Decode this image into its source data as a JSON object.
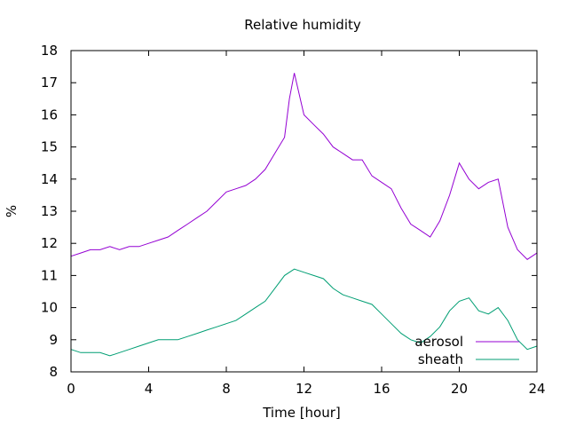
{
  "chart_data": {
    "type": "line",
    "title": "Relative humidity",
    "xlabel": "Time [hour]",
    "ylabel": "%",
    "xlim": [
      0,
      24
    ],
    "ylim": [
      8,
      18
    ],
    "xticks": [
      0,
      4,
      8,
      12,
      16,
      20,
      24
    ],
    "yticks": [
      8,
      9,
      10,
      11,
      12,
      13,
      14,
      15,
      16,
      17,
      18
    ],
    "grid": false,
    "legend_position": "bottom-right",
    "series": [
      {
        "name": "aerosol",
        "color": "#9400d3",
        "x": [
          0,
          0.5,
          1,
          1.5,
          2,
          2.5,
          3,
          3.5,
          4,
          4.5,
          5,
          5.5,
          6,
          6.5,
          7,
          7.5,
          8,
          8.5,
          9,
          9.5,
          10,
          10.5,
          11,
          11.25,
          11.5,
          12,
          12.5,
          13,
          13.5,
          14,
          14.5,
          15,
          15.5,
          16,
          16.5,
          17,
          17.5,
          18,
          18.5,
          19,
          19.5,
          20,
          20.5,
          21,
          21.5,
          22,
          22.5,
          23,
          23.5,
          24
        ],
        "y": [
          11.6,
          11.7,
          11.8,
          11.8,
          11.9,
          11.8,
          11.9,
          11.9,
          12.0,
          12.1,
          12.2,
          12.4,
          12.6,
          12.8,
          13.0,
          13.3,
          13.6,
          13.7,
          13.8,
          14.0,
          14.3,
          14.8,
          15.3,
          16.5,
          17.3,
          16.0,
          15.7,
          15.4,
          15.0,
          14.8,
          14.6,
          14.6,
          14.1,
          13.9,
          13.7,
          13.1,
          12.6,
          12.4,
          12.2,
          12.7,
          13.5,
          14.5,
          14.0,
          13.7,
          13.9,
          14.0,
          12.5,
          11.8,
          11.5,
          11.7
        ]
      },
      {
        "name": "sheath",
        "color": "#009e73",
        "x": [
          0,
          0.5,
          1,
          1.5,
          2,
          2.5,
          3,
          3.5,
          4,
          4.5,
          5,
          5.5,
          6,
          6.5,
          7,
          7.5,
          8,
          8.5,
          9,
          9.5,
          10,
          10.5,
          11,
          11.5,
          12,
          12.5,
          13,
          13.5,
          14,
          14.5,
          15,
          15.5,
          16,
          16.5,
          17,
          17.5,
          18,
          18.5,
          19,
          19.5,
          20,
          20.5,
          21,
          21.5,
          22,
          22.5,
          23,
          23.5,
          24
        ],
        "y": [
          8.7,
          8.6,
          8.6,
          8.6,
          8.5,
          8.6,
          8.7,
          8.8,
          8.9,
          9.0,
          9.0,
          9.0,
          9.1,
          9.2,
          9.3,
          9.4,
          9.5,
          9.6,
          9.8,
          10.0,
          10.2,
          10.6,
          11.0,
          11.2,
          11.1,
          11.0,
          10.9,
          10.6,
          10.4,
          10.3,
          10.2,
          10.1,
          9.8,
          9.5,
          9.2,
          9.0,
          8.9,
          9.1,
          9.4,
          9.9,
          10.2,
          10.3,
          9.9,
          9.8,
          10.0,
          9.6,
          9.0,
          8.7,
          8.8
        ]
      }
    ]
  }
}
